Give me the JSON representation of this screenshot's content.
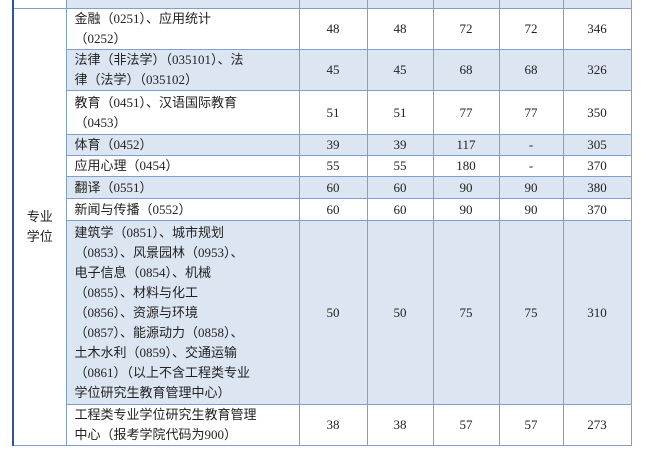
{
  "table": {
    "category": "专业学位",
    "rows": [
      {
        "name_lines": [
          "金融（0251）、应用统计",
          "（0252）"
        ],
        "values": [
          48,
          48,
          72,
          72,
          346
        ]
      },
      {
        "name_lines": [
          "法律（非法学）（035101）、法",
          "律（法学）（035102）"
        ],
        "values": [
          45,
          45,
          68,
          68,
          326
        ]
      },
      {
        "name_lines": [
          "教育（0451）、汉语国际教育",
          "（0453）"
        ],
        "values": [
          51,
          51,
          77,
          77,
          350
        ]
      },
      {
        "name_lines": [
          "体育（0452）"
        ],
        "values": [
          39,
          39,
          117,
          "-",
          305
        ]
      },
      {
        "name_lines": [
          "应用心理（0454）"
        ],
        "values": [
          55,
          55,
          180,
          "-",
          370
        ]
      },
      {
        "name_lines": [
          "翻译（0551）"
        ],
        "values": [
          60,
          60,
          90,
          90,
          380
        ]
      },
      {
        "name_lines": [
          "新闻与传播（0552）"
        ],
        "values": [
          60,
          60,
          90,
          90,
          370
        ]
      },
      {
        "name_lines": [
          "建筑学（0851）、城市规划",
          "（0853）、风景园林（0953）、",
          "电子信息（0854）、机械",
          "（0855）、材料与化工",
          "（0856）、资源与环境",
          "（0857）、能源动力（0858）、",
          "土木水利（0859）、交通运输",
          "（0861）（以上不含工程类专业",
          "学位研究生教育管理中心）"
        ],
        "values": [
          50,
          50,
          75,
          75,
          310
        ]
      },
      {
        "name_lines": [
          "工程类专业学位研究生教育管理",
          "中心（报考学院代码为900）"
        ],
        "values": [
          38,
          38,
          57,
          57,
          273
        ]
      }
    ]
  }
}
